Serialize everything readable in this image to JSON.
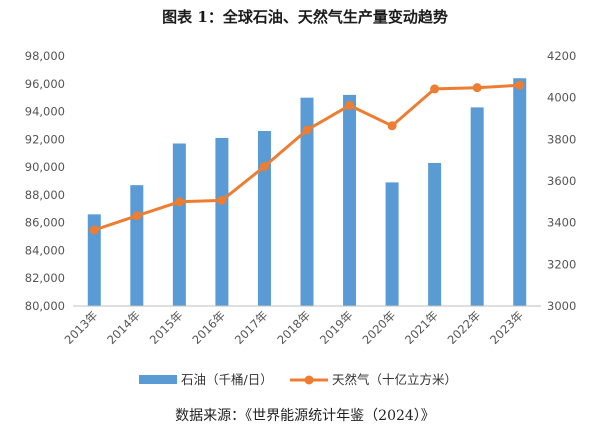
{
  "chart_data": {
    "type": "bar",
    "title": "图表 1：全球石油、天然气生产量变动趋势",
    "categories": [
      "2013年",
      "2014年",
      "2015年",
      "2016年",
      "2017年",
      "2018年",
      "2019年",
      "2020年",
      "2021年",
      "2022年",
      "2023年"
    ],
    "series": [
      {
        "name": "石油（千桶/日）",
        "type": "bar",
        "axis": "left",
        "color": "#5B9BD5",
        "values": [
          86600,
          88700,
          91700,
          92100,
          92600,
          95000,
          95200,
          88900,
          90300,
          94300,
          96400
        ]
      },
      {
        "name": "天然气（十亿立方米）",
        "type": "line",
        "axis": "right",
        "color": "#ED7D31",
        "values": [
          3365,
          3433,
          3500,
          3507,
          3670,
          3845,
          3963,
          3865,
          4042,
          4048,
          4060
        ]
      }
    ],
    "y_left": {
      "min": 80000,
      "max": 98000,
      "step": 2000,
      "ticks": [
        "80,000",
        "82,000",
        "84,000",
        "86,000",
        "88,000",
        "90,000",
        "92,000",
        "94,000",
        "96,000",
        "98,000"
      ]
    },
    "y_right": {
      "min": 3000,
      "max": 4200,
      "step": 200,
      "ticks": [
        "3000",
        "3200",
        "3400",
        "3600",
        "3800",
        "4000",
        "4200"
      ]
    },
    "grid": false,
    "legend_position": "bottom",
    "source": "数据来源：《世界能源统计年鉴（2024）》"
  }
}
